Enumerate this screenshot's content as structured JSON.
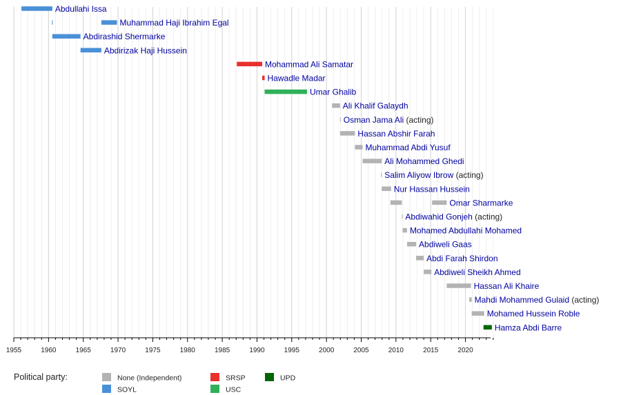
{
  "chart_data": {
    "type": "bar",
    "orientation": "horizontal-timeline",
    "xlim": [
      1955,
      2024
    ],
    "x_ticks": [
      "1955",
      "1960",
      "1965",
      "1970",
      "1975",
      "1980",
      "1985",
      "1990",
      "1995",
      "2000",
      "2005",
      "2010",
      "2015",
      "2020"
    ],
    "grid": true,
    "legend_position": "bottom-left",
    "legend_title": "Political party:",
    "parties": [
      {
        "key": "none",
        "label": "None (Independent)",
        "color": "#b3b3b3"
      },
      {
        "key": "soyl",
        "label": "SOYL",
        "color": "#4a90d9"
      },
      {
        "key": "srsp",
        "label": "SRSP",
        "color": "#e8302e"
      },
      {
        "key": "usc",
        "label": "USC",
        "color": "#30b05a"
      },
      {
        "key": "upd",
        "label": "UPD",
        "color": "#006600"
      }
    ],
    "terms": [
      {
        "name": "Abdullahi Issa",
        "note": "",
        "party": "soyl",
        "periods": [
          [
            1956.1,
            1960.55
          ]
        ]
      },
      {
        "name": "Muhammad Haji Ibrahim Egal",
        "note": "",
        "party": "soyl",
        "periods": [
          [
            1960.5,
            1960.55
          ],
          [
            1967.6,
            1969.85
          ]
        ]
      },
      {
        "name": "Abdirashid Shermarke",
        "note": "",
        "party": "soyl",
        "periods": [
          [
            1960.55,
            1964.6
          ]
        ]
      },
      {
        "name": "Abdirizak Haji Hussein",
        "note": "",
        "party": "soyl",
        "periods": [
          [
            1964.6,
            1967.6
          ]
        ]
      },
      {
        "name": "Mohammad Ali Samatar",
        "note": "",
        "party": "srsp",
        "periods": [
          [
            1987.1,
            1990.75
          ]
        ]
      },
      {
        "name": "Hawadle Madar",
        "note": "",
        "party": "srsp",
        "periods": [
          [
            1990.75,
            1991.1
          ]
        ]
      },
      {
        "name": "Umar Ghalib",
        "note": "",
        "party": "usc",
        "periods": [
          [
            1991.1,
            1997.2
          ]
        ]
      },
      {
        "name": "Ali Khalif Galaydh",
        "note": "",
        "party": "none",
        "periods": [
          [
            2000.8,
            2001.95
          ]
        ]
      },
      {
        "name": "Osman Jama Ali",
        "note": "(acting)",
        "party": "none",
        "periods": [
          [
            2001.95,
            2002.05
          ]
        ]
      },
      {
        "name": "Hassan Abshir Farah",
        "note": "",
        "party": "none",
        "periods": [
          [
            2001.95,
            2004.1
          ]
        ]
      },
      {
        "name": "Muhammad Abdi Yusuf",
        "note": "",
        "party": "none",
        "periods": [
          [
            2004.1,
            2005.2
          ]
        ]
      },
      {
        "name": "Ali Mohammed Ghedi",
        "note": "",
        "party": "none",
        "periods": [
          [
            2005.2,
            2007.95
          ]
        ]
      },
      {
        "name": "Salim Aliyow Ibrow",
        "note": "(acting)",
        "party": "none",
        "periods": [
          [
            2007.85,
            2007.95
          ]
        ]
      },
      {
        "name": "Nur Hassan Hussein",
        "note": "",
        "party": "none",
        "periods": [
          [
            2007.95,
            2009.3
          ]
        ]
      },
      {
        "name": "Omar Sharmarke",
        "note": "",
        "party": "none",
        "periods": [
          [
            2009.2,
            2010.85
          ],
          [
            2015.2,
            2017.3
          ]
        ]
      },
      {
        "name": "Abdiwahid Gonjeh",
        "note": "(acting)",
        "party": "none",
        "periods": [
          [
            2010.85,
            2010.95
          ]
        ]
      },
      {
        "name": "Mohamed Abdullahi Mohamed",
        "note": "",
        "party": "none",
        "periods": [
          [
            2010.95,
            2011.6
          ]
        ]
      },
      {
        "name": "Abdiweli Gaas",
        "note": "",
        "party": "none",
        "periods": [
          [
            2011.6,
            2012.9
          ]
        ]
      },
      {
        "name": "Abdi Farah Shirdon",
        "note": "",
        "party": "none",
        "periods": [
          [
            2012.9,
            2014.0
          ]
        ]
      },
      {
        "name": "Abdiweli Sheikh Ahmed",
        "note": "",
        "party": "none",
        "periods": [
          [
            2014.0,
            2015.1
          ]
        ]
      },
      {
        "name": "Hassan Ali Khaire",
        "note": "",
        "party": "none",
        "periods": [
          [
            2017.3,
            2020.8
          ]
        ]
      },
      {
        "name": "Mahdi Mohammed Gulaid",
        "note": "(acting)",
        "party": "none",
        "periods": [
          [
            2020.55,
            2020.9
          ]
        ]
      },
      {
        "name": "Mohamed Hussein Roble",
        "note": "",
        "party": "none",
        "periods": [
          [
            2020.9,
            2022.7
          ]
        ]
      },
      {
        "name": "Hamza Abdi Barre",
        "note": "",
        "party": "upd",
        "periods": [
          [
            2022.6,
            2023.8
          ]
        ]
      }
    ]
  }
}
